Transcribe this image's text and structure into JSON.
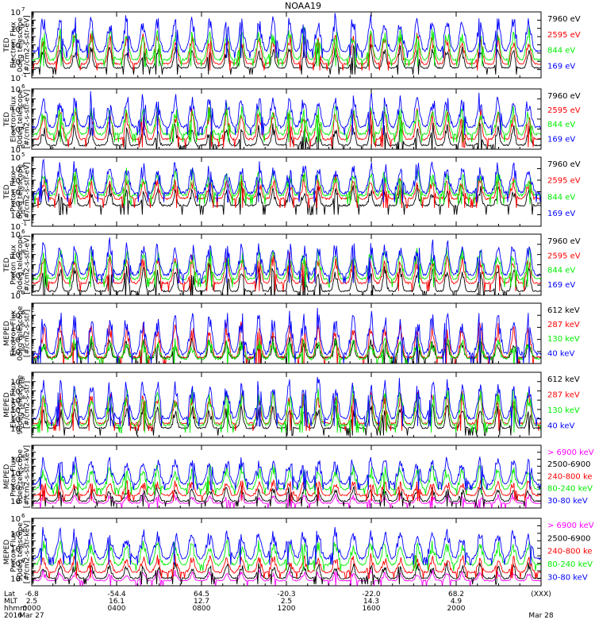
{
  "title": "NOAA19",
  "colors": {
    "blue": "#0000ff",
    "red": "#ff0000",
    "green": "#00ee00",
    "black": "#000000",
    "magenta": "#ff00ff"
  },
  "chart_data": [
    {
      "type": "line",
      "ylabel": [
        "TED",
        "Electron Flux",
        "0deg telescope",
        "[#/cm2-s-str-eV]"
      ],
      "ylog": true,
      "ylim_exp": [
        -1,
        7
      ],
      "tick_exps": [
        -1,
        1,
        3,
        5,
        7
      ],
      "series": [
        {
          "name": "7960 eV",
          "color": "#000000",
          "base": 0.2,
          "peak": 3.0
        },
        {
          "name": "2595 eV",
          "color": "#ff0000",
          "base": 0.7,
          "peak": 4.5
        },
        {
          "name": "844 eV",
          "color": "#00ee00",
          "base": 1.2,
          "peak": 5.0
        },
        {
          "name": "169 eV",
          "color": "#0000ff",
          "base": 2.2,
          "peak": 6.5
        }
      ]
    },
    {
      "type": "line",
      "ylabel": [
        "TED",
        "Electron Flux",
        "30deg telescope",
        "[#/cm2-s-str-eV]"
      ],
      "ylog": true,
      "ylim_exp": [
        0,
        6
      ],
      "tick_exps": [
        0,
        2,
        4,
        6
      ],
      "series": [
        {
          "name": "7960 eV",
          "color": "#000000",
          "base": 0.4,
          "peak": 2.5
        },
        {
          "name": "2595 eV",
          "color": "#ff0000",
          "base": 1.0,
          "peak": 4.0
        },
        {
          "name": "844 eV",
          "color": "#00ee00",
          "base": 1.5,
          "peak": 4.3
        },
        {
          "name": "169 eV",
          "color": "#0000ff",
          "base": 2.2,
          "peak": 5.5
        }
      ]
    },
    {
      "type": "line",
      "ylabel": [
        "TED",
        "Proton Flux",
        "0deg telescope",
        "[#/cm2-s-str-eV]"
      ],
      "ylog": true,
      "ylim_exp": [
        -1,
        5
      ],
      "tick_exps": [
        -1,
        0,
        1,
        2,
        3,
        4,
        5
      ],
      "series": [
        {
          "name": "7960 eV",
          "color": "#000000",
          "base": 0.8,
          "peak": 2.5
        },
        {
          "name": "2595 eV",
          "color": "#ff0000",
          "base": 1.4,
          "peak": 3.2
        },
        {
          "name": "844 eV",
          "color": "#00ee00",
          "base": 1.7,
          "peak": 3.8
        },
        {
          "name": "169 eV",
          "color": "#0000ff",
          "base": 1.9,
          "peak": 4.5
        }
      ]
    },
    {
      "type": "line",
      "ylabel": [
        "TED",
        "Proton Flux",
        "30deg telescope",
        "[#/cm2-s-str-eV]"
      ],
      "ylog": true,
      "ylim_exp": [
        0,
        6
      ],
      "tick_exps": [
        0,
        2,
        4,
        6
      ],
      "series": [
        {
          "name": "7960 eV",
          "color": "#000000",
          "base": 0.4,
          "peak": 3.0
        },
        {
          "name": "2595 eV",
          "color": "#ff0000",
          "base": 1.2,
          "peak": 4.0
        },
        {
          "name": "844 eV",
          "color": "#00ee00",
          "base": 1.6,
          "peak": 4.5
        },
        {
          "name": "169 eV",
          "color": "#0000ff",
          "base": 2.0,
          "peak": 5.2
        }
      ]
    },
    {
      "type": "line",
      "ylabel": [
        "MEPED",
        "Electron Flux",
        "0deg telescope",
        "[#/cm2-s-str]"
      ],
      "ylog": true,
      "ylim_exp": [
        2,
        7
      ],
      "tick_exps": [
        3,
        4,
        5,
        6
      ],
      "series": [
        {
          "name": "612 keV",
          "color": "#000000",
          "base": 2.5,
          "peak": 4.0
        },
        {
          "name": "287 keV",
          "color": "#ff0000",
          "base": 2.5,
          "peak": 5.5
        },
        {
          "name": "130 keV",
          "color": "#00ee00",
          "base": 2.4,
          "peak": 4.0
        },
        {
          "name": "40 keV",
          "color": "#0000ff",
          "base": 2.8,
          "peak": 6.3
        }
      ]
    },
    {
      "type": "line",
      "ylabel": [
        "MEPED",
        "Electron Flux",
        "90deg telescope",
        "[#/cm2-s-str]"
      ],
      "ylog": true,
      "ylim_exp": [
        0,
        7
      ],
      "tick_exps": [
        1,
        2,
        3,
        4,
        5,
        6
      ],
      "series": [
        {
          "name": "612 keV",
          "color": "#000000",
          "base": 1.0,
          "peak": 3.5
        },
        {
          "name": "287 keV",
          "color": "#ff0000",
          "base": 1.5,
          "peak": 5.0
        },
        {
          "name": "130 keV",
          "color": "#00ee00",
          "base": 1.3,
          "peak": 5.3
        },
        {
          "name": "40 keV",
          "color": "#0000ff",
          "base": 2.0,
          "peak": 6.2
        }
      ]
    },
    {
      "type": "line",
      "ylabel": [
        "MEPED",
        "Proton Flux",
        "0deg telescope",
        "[#/cm2-s-str-keV]"
      ],
      "ylog": true,
      "ylim_exp": [
        -3,
        6
      ],
      "tick_exps": [
        -2,
        0,
        2,
        4
      ],
      "series": [
        {
          "name": "> 6900 keV",
          "color": "#ff00ff",
          "base": -2.3,
          "peak": -1.0
        },
        {
          "name": "2500-6900",
          "color": "#000000",
          "base": -2.0,
          "peak": 0.0
        },
        {
          "name": "240-800 ke",
          "color": "#ff0000",
          "base": -1.2,
          "peak": 1.0
        },
        {
          "name": "80-240 keV",
          "color": "#00ee00",
          "base": -0.3,
          "peak": 3.0
        },
        {
          "name": "30-80 keV",
          "color": "#0000ff",
          "base": 0.4,
          "peak": 4.2
        }
      ]
    },
    {
      "type": "line",
      "ylabel": [
        "MEPED",
        "Proton Flux",
        "90deg telescope",
        "[#/cm2-s-str-keV]"
      ],
      "ylog": true,
      "ylim_exp": [
        -3,
        6
      ],
      "tick_exps": [
        -2,
        0,
        2,
        4,
        6
      ],
      "series": [
        {
          "name": "> 6900 keV",
          "color": "#ff00ff",
          "base": -2.3,
          "peak": -1.0
        },
        {
          "name": "2500-6900",
          "color": "#000000",
          "base": -2.0,
          "peak": 0.0
        },
        {
          "name": "240-800 ke",
          "color": "#ff0000",
          "base": -1.2,
          "peak": 1.0
        },
        {
          "name": "80-240 keV",
          "color": "#00ee00",
          "base": -0.2,
          "peak": 3.0
        },
        {
          "name": "30-80 keV",
          "color": "#0000ff",
          "base": 0.6,
          "peak": 4.5
        }
      ]
    }
  ],
  "x_axis": {
    "row_labels": [
      "Lat",
      "MLT",
      "hhmm",
      "2016"
    ],
    "ticks": [
      {
        "hours": 0,
        "lat": "-6.8",
        "mlt": "2.5",
        "hhmm": "0000",
        "date": "Mar 27"
      },
      {
        "hours": 4,
        "lat": "-54.4",
        "mlt": "16.1",
        "hhmm": "0400",
        "date": ""
      },
      {
        "hours": 8,
        "lat": "64.5",
        "mlt": "12.7",
        "hhmm": "0800",
        "date": ""
      },
      {
        "hours": 12,
        "lat": "-20.3",
        "mlt": "2.5",
        "hhmm": "1200",
        "date": ""
      },
      {
        "hours": 16,
        "lat": "-22.0",
        "mlt": "14.3",
        "hhmm": "1600",
        "date": ""
      },
      {
        "hours": 20,
        "lat": "68.2",
        "mlt": "4.9",
        "hhmm": "2000",
        "date": ""
      },
      {
        "hours": 24,
        "lat": "(XXX)",
        "mlt": "",
        "hhmm": "",
        "date": "Mar 28"
      }
    ],
    "range_hours": [
      0,
      24
    ]
  }
}
